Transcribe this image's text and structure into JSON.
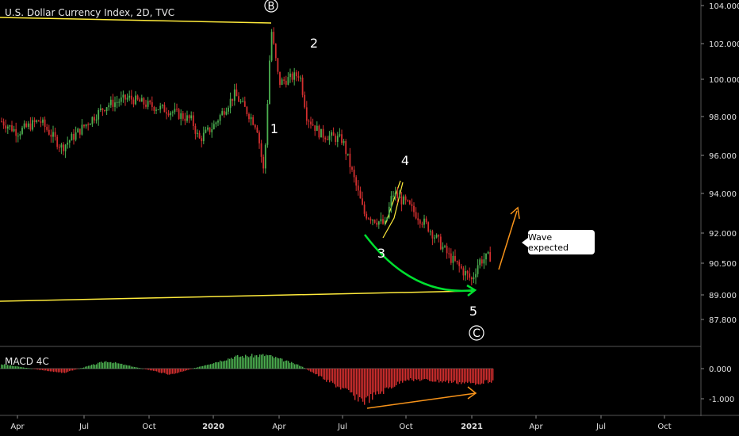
{
  "header": {
    "symbol_title": "U.S. Dollar Currency Index, 2D, TVC"
  },
  "macd": {
    "label": "MACD 4C",
    "ticks": [
      "0.000",
      "-1.000"
    ]
  },
  "callout": {
    "text": "Wave expected"
  },
  "wave_labels": {
    "B": "B",
    "w1": "1",
    "w2": "2",
    "w3": "3",
    "w4": "4",
    "w5": "5",
    "C": "C"
  },
  "colors": {
    "background": "#000000",
    "up": "#4caf50",
    "down": "#d32f2f",
    "trendline": "#ffeb3b",
    "arc": "#00e030",
    "arrow": "#f7931a",
    "text": "#ffffff"
  },
  "chart_data": {
    "type": "candlestick",
    "title": "U.S. Dollar Currency Index, 2D, TVC",
    "y_ticks": [
      "104.000",
      "102.000",
      "100.000",
      "98.000",
      "96.000",
      "94.000",
      "92.000",
      "90.500",
      "89.000",
      "87.800"
    ],
    "x_ticks": [
      "Apr",
      "Jul",
      "Oct",
      "2020",
      "Apr",
      "Jul",
      "Oct",
      "2021",
      "Apr",
      "Jul",
      "Oct"
    ],
    "price_path": [
      {
        "x": "Mar 2019",
        "y": 97.8
      },
      {
        "x": "Apr 2019",
        "y": 97.2
      },
      {
        "x": "May 2019",
        "y": 97.8
      },
      {
        "x": "Jun 2019",
        "y": 96.4
      },
      {
        "x": "Jul 2019",
        "y": 97.5
      },
      {
        "x": "Aug 2019",
        "y": 98.6
      },
      {
        "x": "Sep 2019",
        "y": 99.0
      },
      {
        "x": "Oct 2019",
        "y": 98.6
      },
      {
        "x": "Nov 2019",
        "y": 98.3
      },
      {
        "x": "Dec 2019",
        "y": 97.8
      },
      {
        "x": "Dec 2019",
        "y": 96.8
      },
      {
        "x": "Jan 2020",
        "y": 97.5
      },
      {
        "x": "Feb 2020",
        "y": 99.2
      },
      {
        "x": "Mar 2020",
        "y": 97.5
      },
      {
        "x": "Mar 2020",
        "y": 95.0
      },
      {
        "x": "Mar 2020",
        "y": 102.8
      },
      {
        "x": "Apr 2020",
        "y": 99.8
      },
      {
        "x": "May 2020",
        "y": 100.3
      },
      {
        "x": "May 2020",
        "y": 98.0
      },
      {
        "x": "Jun 2020",
        "y": 97.1
      },
      {
        "x": "Jul 2020",
        "y": 96.8
      },
      {
        "x": "Aug 2020",
        "y": 93.0
      },
      {
        "x": "Sep 2020",
        "y": 92.4
      },
      {
        "x": "Sep 2020",
        "y": 94.0
      },
      {
        "x": "Oct 2020",
        "y": 93.5
      },
      {
        "x": "Nov 2020",
        "y": 92.3
      },
      {
        "x": "Dec 2020",
        "y": 90.8
      },
      {
        "x": "Jan 2021",
        "y": 89.7
      },
      {
        "x": "Jan 2021",
        "y": 90.6
      },
      {
        "x": "Feb 2021",
        "y": 90.9
      }
    ],
    "macd_histogram_path": [
      {
        "x": "Mar 2019",
        "y": 0.15
      },
      {
        "x": "Jun 2019",
        "y": -0.15
      },
      {
        "x": "Aug 2019",
        "y": 0.25
      },
      {
        "x": "Nov 2019",
        "y": -0.2
      },
      {
        "x": "Feb 2020",
        "y": 0.4
      },
      {
        "x": "Mar 2020",
        "y": 0.45
      },
      {
        "x": "May 2020",
        "y": 0.1
      },
      {
        "x": "Jul 2020",
        "y": -0.7
      },
      {
        "x": "Aug 2020",
        "y": -1.1
      },
      {
        "x": "Oct 2020",
        "y": -0.35
      },
      {
        "x": "Jan 2021",
        "y": -0.5
      },
      {
        "x": "Feb 2021",
        "y": -0.4
      }
    ]
  }
}
